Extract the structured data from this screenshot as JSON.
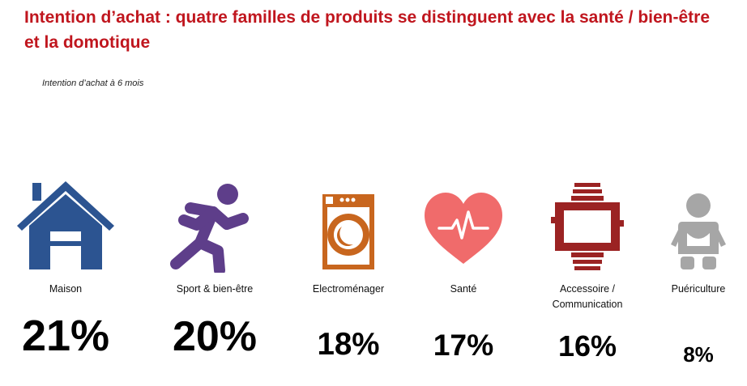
{
  "title": "Intention d’achat : quatre familles de produits se distinguent avec la  santé / bien-être et la domotique",
  "subtitle": "Intention d’achat  à 6 mois",
  "colors": {
    "title": "#c0161e",
    "maison": "#2c5491",
    "sport": "#5e3e8a",
    "electromenager": "#c8661e",
    "sante": "#f06b6b",
    "accessoire": "#9b2323",
    "puericulture": "#a6a6a6"
  },
  "chart_data": {
    "type": "bar",
    "categories": [
      "Maison",
      "Sport & bien-être",
      "Electroménager",
      "Santé",
      "Accessoire / Communication",
      "Puériculture"
    ],
    "values": [
      21,
      20,
      18,
      17,
      16,
      8
    ],
    "unit": "%",
    "title": "Intention d’achat : quatre familles de produits se distinguent avec la  santé / bien-être et la domotique",
    "subtitle": "Intention d’achat  à 6 mois",
    "icons": [
      "house-icon",
      "runner-icon",
      "washing-machine-icon",
      "heart-pulse-icon",
      "smartwatch-icon",
      "baby-icon"
    ]
  },
  "items": [
    {
      "label_lines": [
        "Maison"
      ],
      "value_text": "21%"
    },
    {
      "label_lines": [
        "Sport & bien-être"
      ],
      "value_text": "20%"
    },
    {
      "label_lines": [
        "Electroménager"
      ],
      "value_text": "18%"
    },
    {
      "label_lines": [
        "Santé"
      ],
      "value_text": "17%"
    },
    {
      "label_lines": [
        "Accessoire /",
        "Communication"
      ],
      "value_text": "16%"
    },
    {
      "label_lines": [
        "Puériculture"
      ],
      "value_text": "8%"
    }
  ]
}
